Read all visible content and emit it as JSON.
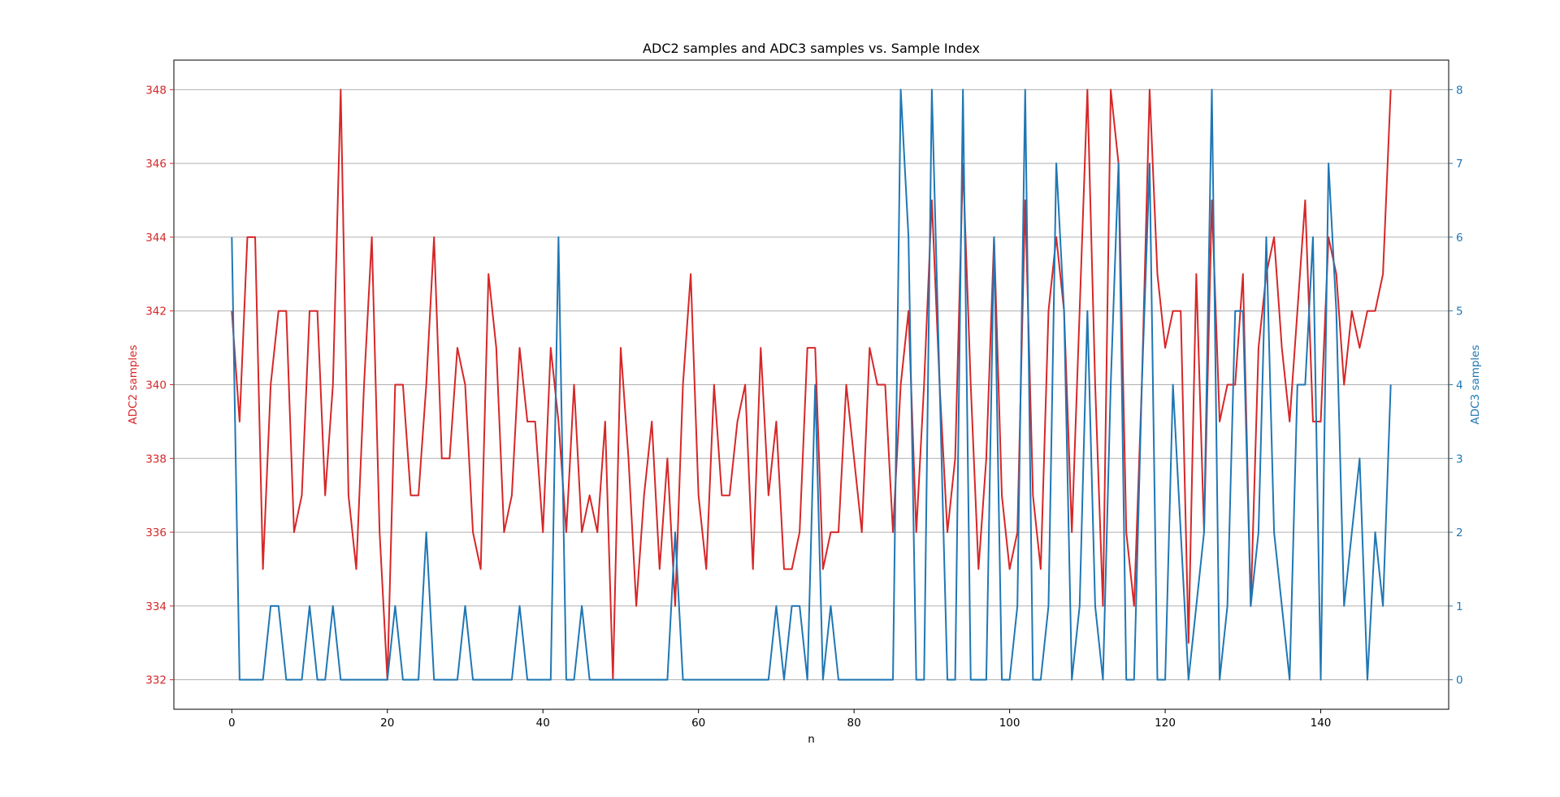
{
  "chart_data": {
    "type": "line",
    "title": "ADC2 samples and ADC3 samples vs. Sample Index",
    "xlabel": "n",
    "x": [
      0,
      1,
      2,
      3,
      4,
      5,
      6,
      7,
      8,
      9,
      10,
      11,
      12,
      13,
      14,
      15,
      16,
      17,
      18,
      19,
      20,
      21,
      22,
      23,
      24,
      25,
      26,
      27,
      28,
      29,
      30,
      31,
      32,
      33,
      34,
      35,
      36,
      37,
      38,
      39,
      40,
      41,
      42,
      43,
      44,
      45,
      46,
      47,
      48,
      49,
      50,
      51,
      52,
      53,
      54,
      55,
      56,
      57,
      58,
      59,
      60,
      61,
      62,
      63,
      64,
      65,
      66,
      67,
      68,
      69,
      70,
      71,
      72,
      73,
      74,
      75,
      76,
      77,
      78,
      79,
      80,
      81,
      82,
      83,
      84,
      85,
      86,
      87,
      88,
      89,
      90,
      91,
      92,
      93,
      94,
      95,
      96,
      97,
      98,
      99,
      100,
      101,
      102,
      103,
      104,
      105,
      106,
      107,
      108,
      109,
      110,
      111,
      112,
      113,
      114,
      115,
      116,
      117,
      118,
      119,
      120,
      121,
      122,
      123,
      124,
      125,
      126,
      127,
      128,
      129,
      130,
      131,
      132,
      133,
      134,
      135,
      136,
      137,
      138,
      139,
      140,
      141,
      142,
      143,
      144,
      145,
      146,
      147,
      148,
      149
    ],
    "xlim": [
      -7.45,
      156.45
    ],
    "xticks": [
      "0",
      "20",
      "40",
      "60",
      "80",
      "100",
      "120",
      "140"
    ],
    "grid": "horizontal",
    "series": [
      {
        "name": "ADC2 samples",
        "axis": "left",
        "color": "#d62728",
        "ylim": [
          331.2,
          348.8
        ],
        "yticks": [
          "332",
          "334",
          "336",
          "338",
          "340",
          "342",
          "344",
          "346",
          "348"
        ],
        "values": [
          342,
          339,
          344,
          344,
          335,
          340,
          342,
          342,
          336,
          337,
          342,
          342,
          337,
          340,
          348,
          337,
          335,
          340,
          344,
          336,
          332,
          340,
          340,
          337,
          337,
          340,
          344,
          338,
          338,
          341,
          340,
          336,
          335,
          343,
          341,
          336,
          337,
          341,
          339,
          339,
          336,
          341,
          339,
          336,
          340,
          336,
          337,
          336,
          339,
          332,
          341,
          338,
          334,
          337,
          339,
          335,
          338,
          334,
          340,
          343,
          337,
          335,
          340,
          337,
          337,
          339,
          340,
          335,
          341,
          337,
          339,
          335,
          335,
          336,
          341,
          341,
          335,
          336,
          336,
          340,
          338,
          336,
          341,
          340,
          340,
          336,
          340,
          342,
          336,
          340,
          345,
          340,
          336,
          338,
          346,
          340,
          335,
          338,
          344,
          337,
          335,
          336,
          345,
          337,
          335,
          342,
          344,
          342,
          336,
          342,
          348,
          340,
          334,
          348,
          346,
          336,
          334,
          340,
          348,
          343,
          341,
          342,
          342,
          333,
          343,
          336,
          345,
          339,
          340,
          340,
          343,
          334,
          341,
          343,
          344,
          341,
          339,
          342,
          345,
          339,
          339,
          344,
          343,
          340,
          342,
          341,
          342,
          342,
          343,
          348
        ]
      },
      {
        "name": "ADC3 samples",
        "axis": "right",
        "color": "#1f77b4",
        "ylim": [
          -0.4,
          8.4
        ],
        "yticks": [
          "0",
          "1",
          "2",
          "3",
          "4",
          "5",
          "6",
          "7",
          "8"
        ],
        "values": [
          6,
          0,
          0,
          0,
          0,
          1,
          1,
          0,
          0,
          0,
          1,
          0,
          0,
          1,
          0,
          0,
          0,
          0,
          0,
          0,
          0,
          1,
          0,
          0,
          0,
          2,
          0,
          0,
          0,
          0,
          1,
          0,
          0,
          0,
          0,
          0,
          0,
          1,
          0,
          0,
          0,
          0,
          6,
          0,
          0,
          1,
          0,
          0,
          0,
          0,
          0,
          0,
          0,
          0,
          0,
          0,
          0,
          2,
          0,
          0,
          0,
          0,
          0,
          0,
          0,
          0,
          0,
          0,
          0,
          0,
          1,
          0,
          1,
          1,
          0,
          4,
          0,
          1,
          0,
          0,
          0,
          0,
          0,
          0,
          0,
          0,
          8,
          6,
          0,
          0,
          8,
          4,
          0,
          0,
          8,
          0,
          0,
          0,
          6,
          0,
          0,
          1,
          8,
          0,
          0,
          1,
          7,
          5,
          0,
          1,
          5,
          1,
          0,
          4,
          7,
          0,
          0,
          4,
          7,
          0,
          0,
          4,
          2,
          0,
          1,
          2,
          8,
          0,
          1,
          5,
          5,
          1,
          2,
          6,
          2,
          1,
          0,
          4,
          4,
          6,
          0,
          7,
          5,
          1,
          2,
          3,
          0,
          2,
          1,
          4
        ]
      }
    ]
  }
}
